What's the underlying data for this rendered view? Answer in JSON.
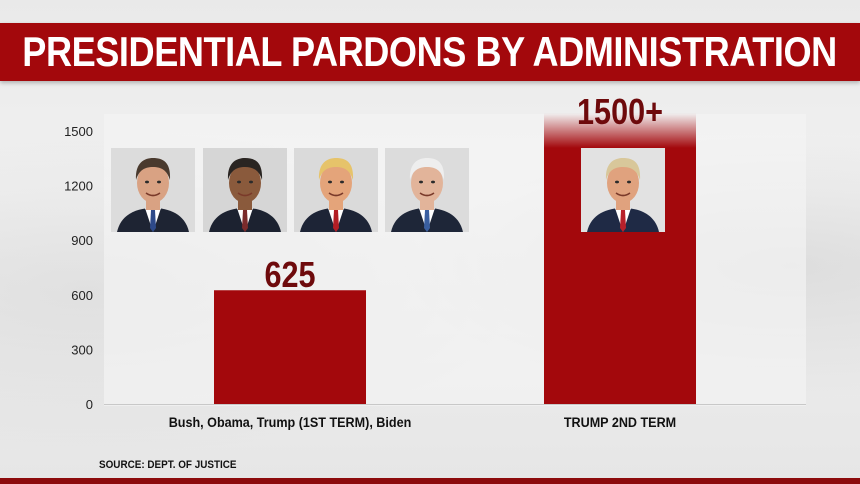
{
  "header": {
    "title": "PRESIDENTIAL PARDONS BY ADMINISTRATION"
  },
  "footer": {
    "source": "SOURCE: DEPT. OF JUSTICE"
  },
  "colors": {
    "bar": "#a3080c",
    "title_bar": "#a3080c",
    "value_label": "#6e0a0c"
  },
  "portraits": {
    "group": [
      "Bush",
      "Obama",
      "Trump",
      "Biden"
    ],
    "second": [
      "Trump"
    ]
  },
  "chart_data": {
    "type": "bar",
    "title": "PRESIDENTIAL PARDONS BY ADMINISTRATION",
    "xlabel": "",
    "ylabel": "",
    "categories": [
      "Bush, Obama, Trump (1ST TERM), Biden",
      "TRUMP 2ND TERM"
    ],
    "values": [
      625,
      1500
    ],
    "data_labels": [
      "625",
      "1500+"
    ],
    "yticks": [
      0,
      300,
      600,
      900,
      1200,
      1500
    ],
    "ylim": [
      0,
      1500
    ],
    "grid": false,
    "legend": "none"
  }
}
